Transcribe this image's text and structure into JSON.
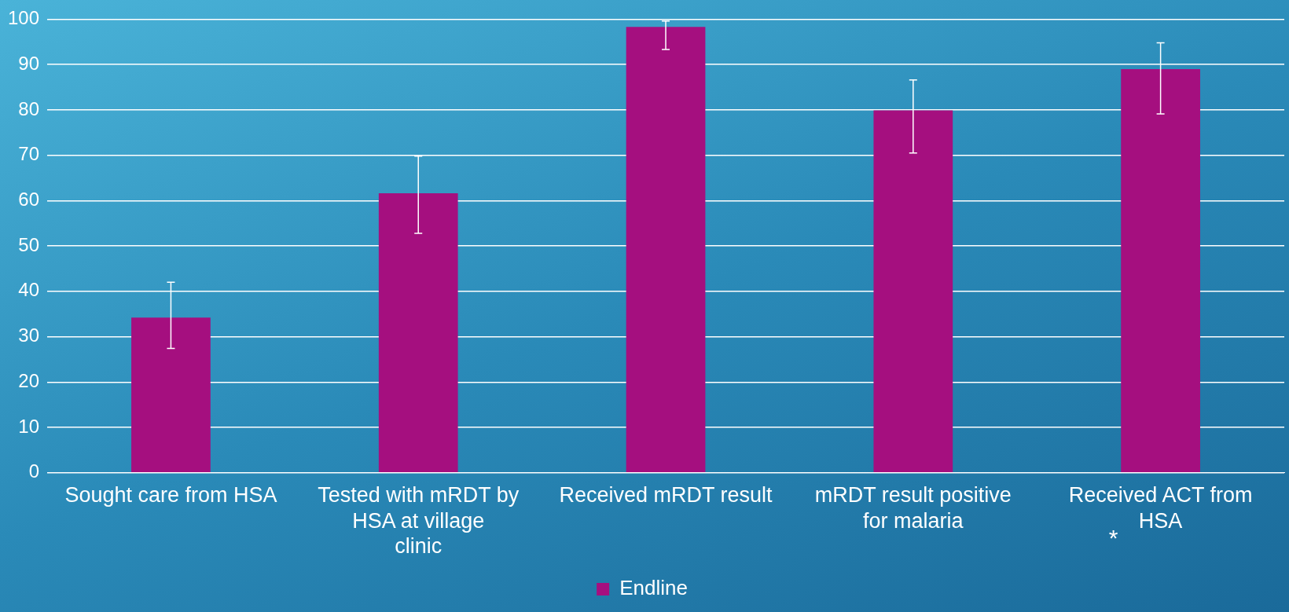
{
  "chart_data": {
    "type": "bar",
    "categories": [
      "Sought care from HSA",
      "Tested with mRDT by HSA at village clinic",
      "Received mRDT result",
      "mRDT result positive for malaria",
      "Received ACT from HSA"
    ],
    "series": [
      {
        "name": "Endline",
        "color": "#a50f7f",
        "values": [
          34.2,
          61.6,
          98.3,
          79.9,
          89
        ],
        "errors": [
          [
            27.4,
            42
          ],
          [
            52.8,
            69.8
          ],
          [
            93.3,
            99.6
          ],
          [
            70.5,
            86.6
          ],
          [
            79.1,
            94.8
          ]
        ]
      }
    ],
    "ylim": [
      0,
      100
    ],
    "yticks": [
      0,
      10,
      20,
      30,
      40,
      50,
      60,
      70,
      80,
      90,
      100
    ],
    "grid": "y",
    "legend": "bottom",
    "annotations": [
      "*"
    ]
  }
}
